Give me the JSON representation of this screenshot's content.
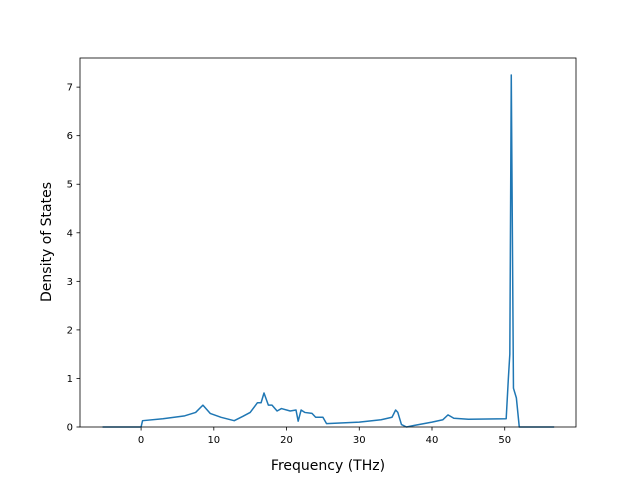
{
  "chart_data": {
    "type": "line",
    "x_label": "Frequency (THz)",
    "y_label": "Density of States",
    "series": [
      {
        "color": "#1f77b4",
        "x": [
          -5.3,
          0,
          0.2,
          3,
          6,
          7.5,
          8.5,
          9.5,
          11,
          12.8,
          14,
          15,
          16,
          16.5,
          16.9,
          17.5,
          18,
          18.7,
          19.3,
          20.5,
          21.3,
          21.6,
          22,
          22.5,
          23.5,
          24,
          25,
          25.5,
          27,
          30,
          33,
          34.5,
          35,
          35.3,
          35.8,
          36.5,
          37.5,
          40,
          41.5,
          42.2,
          43,
          45,
          50.2,
          50.5,
          50.7,
          50.9,
          51.2,
          51.6,
          52,
          56.8
        ],
        "values": [
          0,
          0,
          0.13,
          0.17,
          0.23,
          0.3,
          0.45,
          0.28,
          0.2,
          0.13,
          0.22,
          0.3,
          0.5,
          0.5,
          0.7,
          0.45,
          0.45,
          0.33,
          0.38,
          0.33,
          0.35,
          0.12,
          0.35,
          0.3,
          0.28,
          0.2,
          0.2,
          0.07,
          0.08,
          0.1,
          0.15,
          0.2,
          0.35,
          0.3,
          0.05,
          0,
          0.03,
          0.1,
          0.15,
          0.25,
          0.18,
          0.16,
          0.17,
          1.0,
          1.5,
          7.25,
          0.8,
          0.6,
          0,
          0
        ]
      }
    ],
    "xlim": [
      -8.4,
      59.8
    ],
    "ylim": [
      0,
      7.6
    ],
    "xticks": [
      0,
      10,
      20,
      30,
      40,
      50
    ],
    "yticks": [
      0,
      1,
      2,
      3,
      4,
      5,
      6,
      7
    ]
  }
}
